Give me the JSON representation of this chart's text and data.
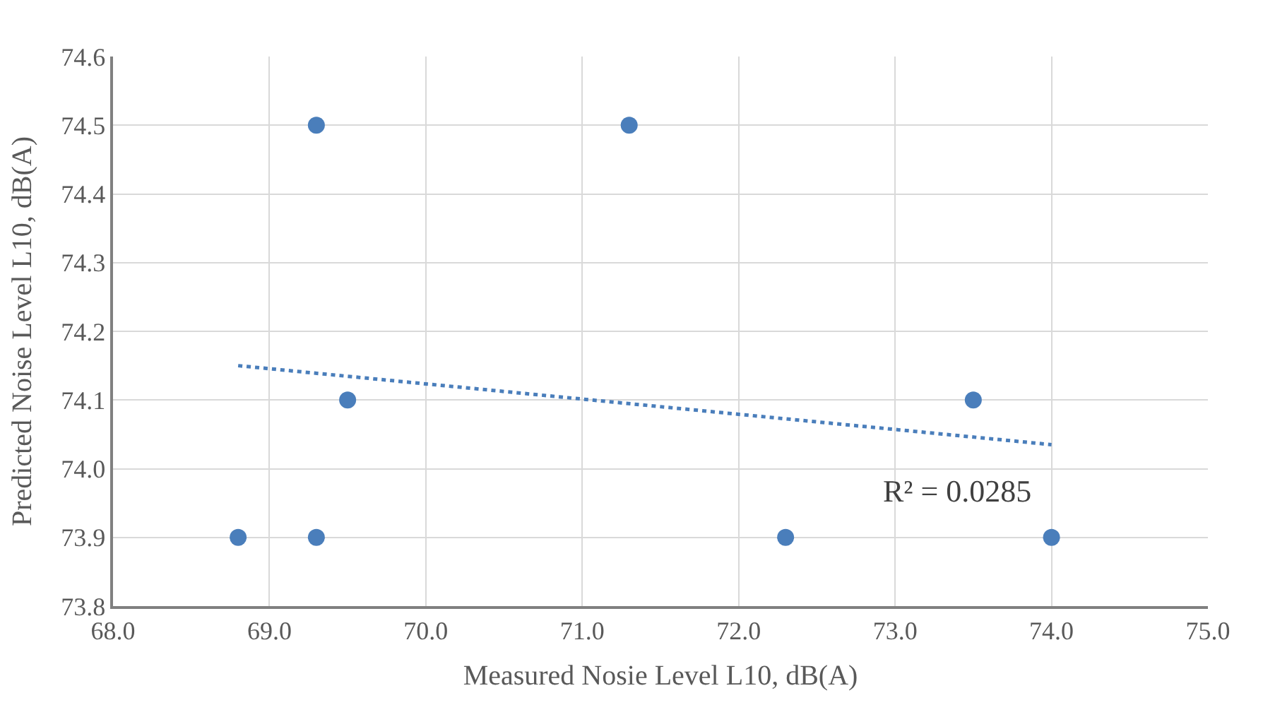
{
  "chart_data": {
    "type": "scatter",
    "xlabel": "Measured Nosie Level L10, dB(A)",
    "ylabel": "Predicted Noise Level L10, dB(A)",
    "x": [
      68.8,
      69.3,
      69.3,
      69.5,
      71.3,
      72.3,
      73.5,
      74.0
    ],
    "series": [
      {
        "color": "#4a7ebb",
        "values": [
          73.9,
          73.9,
          74.5,
          74.1,
          74.5,
          73.9,
          74.1,
          73.9
        ],
        "marker": "circle"
      },
      {
        "type": "line",
        "color": "#4a7ebb",
        "x": [
          68.8,
          74.0
        ],
        "values": [
          74.15,
          74.035
        ],
        "line_style": "dotted",
        "marker": "none"
      }
    ],
    "annotations": [
      "R² = 0.0285"
    ],
    "xlim": [
      68,
      75
    ],
    "xticks": [
      {
        "value": 68,
        "label": "68.0"
      },
      {
        "value": 69,
        "label": "69.0"
      },
      {
        "value": 70,
        "label": "70.0"
      },
      {
        "value": 71,
        "label": "71.0"
      },
      {
        "value": 72,
        "label": "72.0"
      },
      {
        "value": 73,
        "label": "73.0"
      },
      {
        "value": 74,
        "label": "74.0"
      },
      {
        "value": 75,
        "label": "75.0"
      }
    ],
    "ylim": [
      73.8,
      74.6
    ],
    "yticks": [
      73.8,
      73.9,
      {
        "value": 74.0,
        "label": "74.0"
      },
      74.1,
      74.2,
      74.3,
      74.4,
      74.5,
      74.6
    ],
    "grid": true
  }
}
